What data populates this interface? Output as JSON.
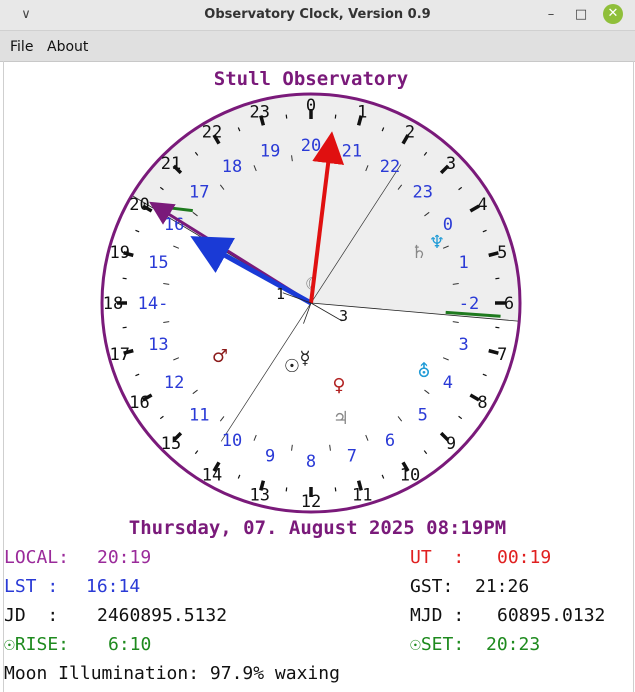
{
  "window": {
    "title": "Observatory Clock, Version 0.9",
    "collapse_glyph": "∨",
    "minimize_glyph": "–",
    "maximize_glyph": "□",
    "close_glyph": "✕"
  },
  "menu": {
    "items": [
      "File",
      "About"
    ]
  },
  "clock": {
    "observatory_name": "Stull Observatory",
    "outer_hour_labels": [
      "0",
      "1",
      "2",
      "3",
      "4",
      "5",
      "6",
      "7",
      "8",
      "9",
      "10",
      "11",
      "12",
      "13",
      "14",
      "15",
      "16",
      "17",
      "18",
      "19",
      "20",
      "21",
      "22",
      "23"
    ],
    "lst_labels": [
      {
        "text": "20",
        "angle": 0
      },
      {
        "text": "21",
        "angle": 15
      },
      {
        "text": "22",
        "angle": 30
      },
      {
        "text": "23",
        "angle": 45
      },
      {
        "text": "0",
        "angle": 60
      },
      {
        "text": "1",
        "angle": 75
      },
      {
        "text": "-2",
        "angle": 90
      },
      {
        "text": "3",
        "angle": 105
      },
      {
        "text": "4",
        "angle": 120
      },
      {
        "text": "5",
        "angle": 135
      },
      {
        "text": "6",
        "angle": 150
      },
      {
        "text": "7",
        "angle": 165
      },
      {
        "text": "8",
        "angle": 180
      },
      {
        "text": "9",
        "angle": 195
      },
      {
        "text": "10",
        "angle": 210
      },
      {
        "text": "11",
        "angle": 225
      },
      {
        "text": "12",
        "angle": 240
      },
      {
        "text": "13",
        "angle": 255
      },
      {
        "text": "14-",
        "angle": 270
      },
      {
        "text": "15",
        "angle": 285
      },
      {
        "text": "16",
        "angle": 300
      },
      {
        "text": "17",
        "angle": 315
      },
      {
        "text": "18",
        "angle": 330
      },
      {
        "text": "19",
        "angle": 345
      }
    ],
    "planet_symbols": [
      {
        "name": "saturn",
        "glyph": "♄",
        "color": "#888888"
      },
      {
        "name": "neptune",
        "glyph": "♆",
        "color": "#1e9ad6"
      },
      {
        "name": "moon",
        "glyph": "☾",
        "color": "#888888"
      },
      {
        "name": "mars",
        "glyph": "♂",
        "color": "#8b1a1a"
      },
      {
        "name": "sun",
        "glyph": "☉",
        "color": "#222222"
      },
      {
        "name": "mercury",
        "glyph": "☿",
        "color": "#222222"
      },
      {
        "name": "uranus",
        "glyph": "⛢",
        "color": "#1e9ad6"
      },
      {
        "name": "venus",
        "glyph": "♀",
        "color": "#b22222"
      },
      {
        "name": "jupiter",
        "glyph": "♃",
        "color": "#888888"
      }
    ],
    "center_labels": {
      "left": "1",
      "right": "3"
    },
    "colors": {
      "ring": "#7a1a7a",
      "utc_hand": "#e01010",
      "local_hand": "#7a1a7a",
      "lst_hand": "#1a3ad6",
      "sun_line": "#1e7a1e",
      "lst_text": "#2a3ad6",
      "day_shade": "#eeeeee"
    }
  },
  "datetime": "Thursday, 07. August 2025 08:19PM",
  "info": {
    "local_label": "LOCAL:",
    "local_value": "20:19",
    "ut_label": "UT  :",
    "ut_value": "00:19",
    "lst_label": "LST :",
    "lst_value": "16:14",
    "gst_label": "GST:",
    "gst_value": "21:26",
    "jd_label": "JD  :",
    "jd_value": "2460895.5132",
    "mjd_label": "MJD :",
    "mjd_value": "60895.0132",
    "rise_label": "☉RISE:",
    "rise_value": "6:10",
    "set_label": "☉SET:",
    "set_value": "20:23",
    "moon_text": "Moon Illumination: 97.9% waxing",
    "colors": {
      "local": "#9a2a9a",
      "ut": "#e02020",
      "lst": "#2a3ad6",
      "black": "#111111",
      "rise": "#1e8a1e",
      "set": "#1e8a1e"
    }
  }
}
